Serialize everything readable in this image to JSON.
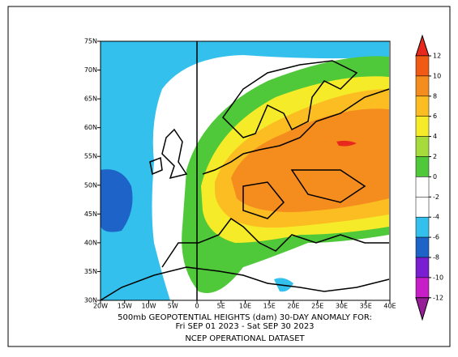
{
  "map": {
    "title_line1": "500mb GEOPOTENTIAL HEIGHTS (dam)    30-DAY ANOMALY FOR:",
    "title_line2": "Fri SEP 01 2023 - Sat SEP 30 2023",
    "title_line3": "NCEP OPERATIONAL DATASET",
    "lat_labels": [
      "75N",
      "70N",
      "65N",
      "60N",
      "55N",
      "50N",
      "45N",
      "40N",
      "35N",
      "30N"
    ],
    "lon_labels": [
      "20W",
      "15W",
      "10W",
      "5W",
      "0",
      "5E",
      "10E",
      "15E",
      "20E",
      "25E",
      "30E",
      "35E",
      "40E"
    ],
    "colorbar": {
      "levels": [
        12,
        10,
        8,
        6,
        4,
        2,
        0,
        -2,
        -4,
        -6,
        -8,
        -10,
        -12
      ],
      "colors": [
        "#e8281c",
        "#f05a14",
        "#f58c1e",
        "#fbbd22",
        "#f5eb28",
        "#a6db3c",
        "#4fc83a",
        "#ffffff",
        "#ffffff",
        "#34c0ec",
        "#1e64c8",
        "#7a1ed2",
        "#c81ec8",
        "#961e96"
      ]
    }
  }
}
